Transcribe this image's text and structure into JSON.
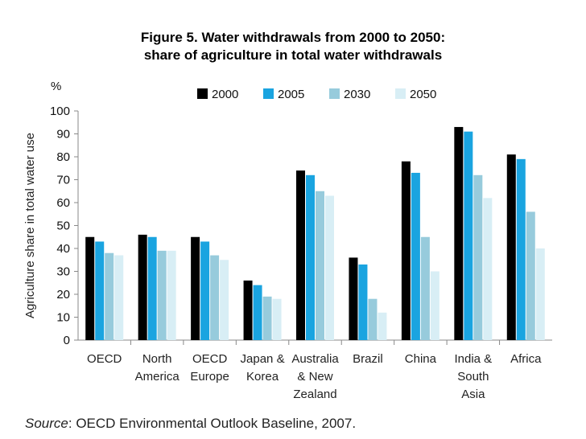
{
  "chart_data": {
    "type": "bar",
    "title": "Figure 5. Water withdrawals from 2000 to 2050:",
    "subtitle": "share of agriculture in total water withdrawals",
    "ylabel": "Agriculture share in total water use",
    "yunit": "%",
    "ylim": [
      0,
      100
    ],
    "yticks": [
      0,
      10,
      20,
      30,
      40,
      50,
      60,
      70,
      80,
      90,
      100
    ],
    "grid": false,
    "legend": "top",
    "categories": [
      [
        "OECD"
      ],
      [
        "North",
        "America"
      ],
      [
        "OECD",
        "Europe"
      ],
      [
        "Japan &",
        "Korea"
      ],
      [
        "Australia",
        "& New",
        "Zealand"
      ],
      [
        "Brazil"
      ],
      [
        "China"
      ],
      [
        "India &",
        "South",
        "Asia"
      ],
      [
        "Africa"
      ]
    ],
    "series": [
      {
        "name": "2000",
        "color": "#000000",
        "values": [
          45,
          46,
          45,
          26,
          74,
          36,
          78,
          93,
          81
        ]
      },
      {
        "name": "2005",
        "color": "#1aa4e0",
        "values": [
          43,
          45,
          43,
          24,
          72,
          33,
          73,
          91,
          79
        ]
      },
      {
        "name": "2030",
        "color": "#97cbdc",
        "values": [
          38,
          39,
          37,
          19,
          65,
          18,
          45,
          72,
          56
        ]
      },
      {
        "name": "2050",
        "color": "#d8eef5",
        "values": [
          37,
          39,
          35,
          18,
          63,
          12,
          30,
          62,
          40
        ]
      }
    ]
  },
  "source": {
    "label": "Source",
    "text": ": OECD Environmental Outlook Baseline, 2007."
  }
}
